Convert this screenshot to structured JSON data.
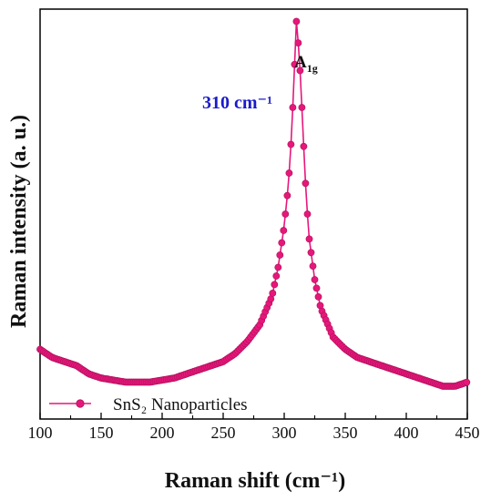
{
  "chart_data": {
    "type": "line",
    "title": "",
    "xlabel": "Raman shift (cm⁻¹)",
    "ylabel": "Raman intensity (a. u.)",
    "xlim": [
      100,
      450
    ],
    "ylim": [
      0,
      1
    ],
    "x_ticks": [
      "100",
      "150",
      "200",
      "250",
      "300",
      "350",
      "400",
      "450"
    ],
    "y_ticks_labeled": false,
    "grid": false,
    "legend_position": "bottom-left",
    "series": [
      {
        "name": "SnS₂ Nanoparticles",
        "color": "#e6177a",
        "marker": "circle",
        "x": [
          100,
          110,
          120,
          130,
          140,
          150,
          160,
          170,
          180,
          190,
          200,
          210,
          220,
          230,
          240,
          250,
          260,
          270,
          280,
          290,
          295,
          300,
          303,
          305,
          307,
          309,
          310,
          311,
          313,
          315,
          317,
          320,
          325,
          330,
          340,
          350,
          360,
          370,
          380,
          390,
          400,
          410,
          420,
          430,
          440,
          450
        ],
        "y": [
          0.17,
          0.15,
          0.14,
          0.13,
          0.11,
          0.1,
          0.095,
          0.09,
          0.09,
          0.09,
          0.095,
          0.1,
          0.11,
          0.12,
          0.13,
          0.14,
          0.16,
          0.19,
          0.23,
          0.3,
          0.37,
          0.47,
          0.56,
          0.64,
          0.76,
          0.9,
          0.97,
          0.94,
          0.85,
          0.73,
          0.6,
          0.45,
          0.34,
          0.27,
          0.2,
          0.17,
          0.15,
          0.14,
          0.13,
          0.12,
          0.11,
          0.1,
          0.09,
          0.08,
          0.08,
          0.09
        ]
      }
    ],
    "annotations": [
      {
        "text": "310 cm⁻¹",
        "color": "#1a1acc"
      },
      {
        "text_main": "A",
        "text_sub": "1g",
        "color": "#111111"
      }
    ]
  }
}
